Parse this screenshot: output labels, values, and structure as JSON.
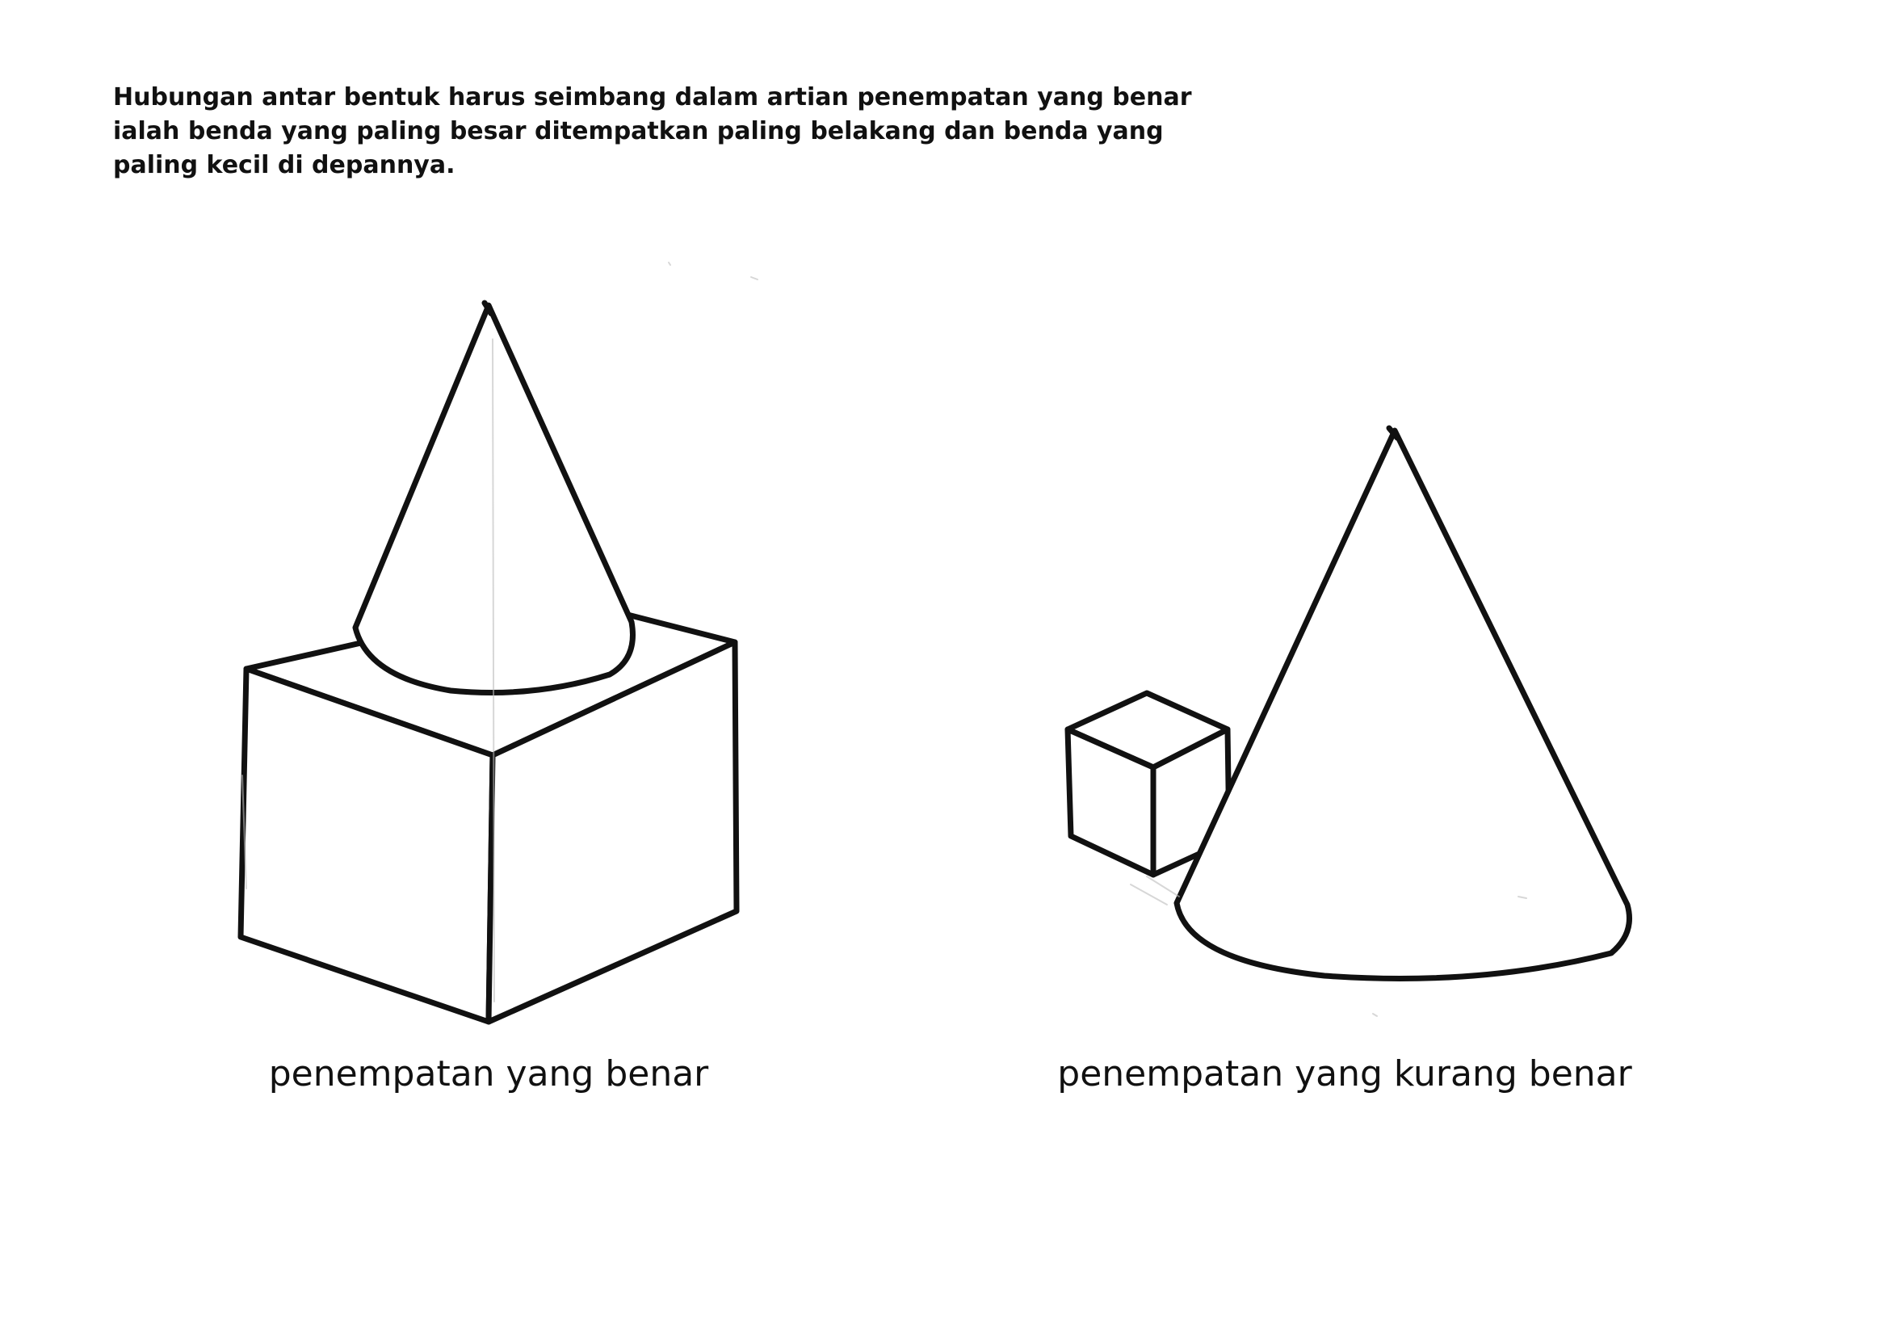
{
  "intro_text": "Hubungan antar bentuk harus seimbang dalam artian penempatan yang benar ialah benda yang paling besar ditempatkan paling belakang dan benda yang paling kecil di depannya.",
  "left_figure": {
    "caption": "penempatan yang benar",
    "shapes": [
      "cube-shape",
      "cone-shape"
    ]
  },
  "right_figure": {
    "caption": "penempatan yang kurang benar",
    "shapes": [
      "small-cube-shape",
      "large-cone-shape"
    ]
  },
  "ink_color": "#111111",
  "background_color": "#ffffff"
}
